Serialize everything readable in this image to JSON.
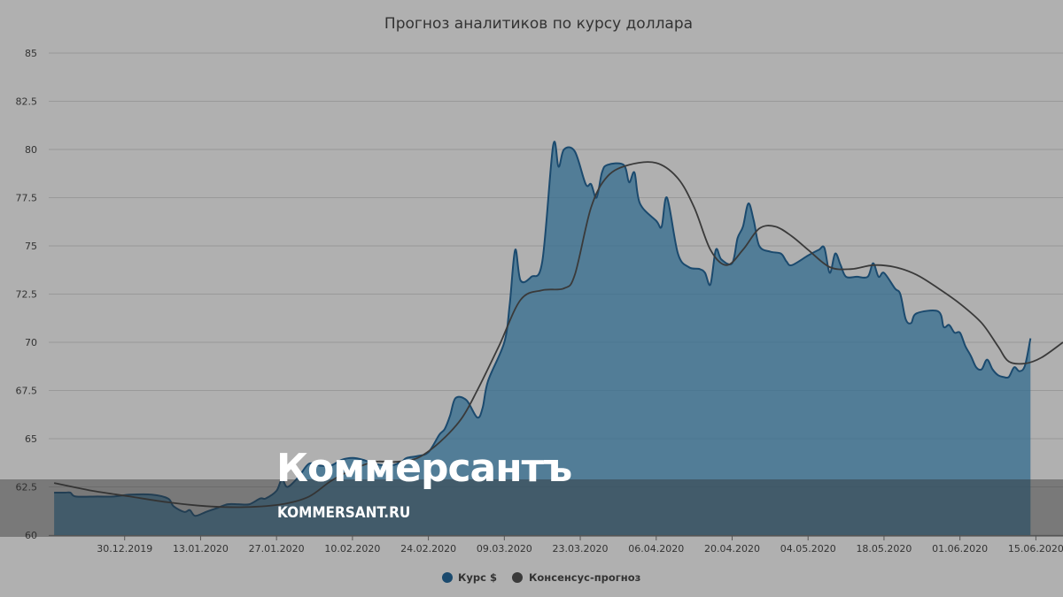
{
  "chart_data": {
    "type": "area",
    "title": "Прогноз аналитиков по курсу доллара",
    "xlabel": "",
    "ylabel": "",
    "ylim": [
      60,
      85
    ],
    "yticks": [
      "60",
      "62.5",
      "65",
      "67.5",
      "70",
      "72.5",
      "75",
      "77.5",
      "80",
      "82.5",
      "85"
    ],
    "xrange": [
      "2019-12-16",
      "2020-06-20"
    ],
    "xticks": [
      "30.12.2019",
      "13.01.2020",
      "27.01.2020",
      "10.02.2020",
      "24.02.2020",
      "09.03.2020",
      "23.03.2020",
      "06.04.2020",
      "20.04.2020",
      "04.05.2020",
      "18.05.2020",
      "01.06.2020",
      "15.06.2020"
    ],
    "grid": true,
    "legend_position": "bottom",
    "colors": {
      "rate": "#1b4a6e",
      "rate_fill": "#2e6a8e",
      "consensus": "#3a3a3a"
    },
    "series": [
      {
        "name": "Курс $",
        "style": "area",
        "points": [
          [
            "2019-12-17",
            62.2
          ],
          [
            "2019-12-19",
            62.2
          ],
          [
            "2019-12-20",
            62.2
          ],
          [
            "2019-12-21",
            62.0
          ],
          [
            "2019-12-25",
            62.0
          ],
          [
            "2019-12-28",
            62.0
          ],
          [
            "2019-12-31",
            62.1
          ],
          [
            "2020-01-04",
            62.1
          ],
          [
            "2020-01-07",
            61.9
          ],
          [
            "2020-01-08",
            61.5
          ],
          [
            "2020-01-10",
            61.2
          ],
          [
            "2020-01-11",
            61.3
          ],
          [
            "2020-01-12",
            61.0
          ],
          [
            "2020-01-14",
            61.2
          ],
          [
            "2020-01-16",
            61.4
          ],
          [
            "2020-01-18",
            61.6
          ],
          [
            "2020-01-20",
            61.6
          ],
          [
            "2020-01-22",
            61.6
          ],
          [
            "2020-01-24",
            61.9
          ],
          [
            "2020-01-25",
            61.9
          ],
          [
            "2020-01-27",
            62.3
          ],
          [
            "2020-01-28",
            62.9
          ],
          [
            "2020-01-29",
            62.5
          ],
          [
            "2020-01-31",
            63.0
          ],
          [
            "2020-02-02",
            63.7
          ],
          [
            "2020-02-04",
            63.6
          ],
          [
            "2020-02-06",
            63.6
          ],
          [
            "2020-02-08",
            63.9
          ],
          [
            "2020-02-10",
            64.0
          ],
          [
            "2020-02-12",
            63.9
          ],
          [
            "2020-02-14",
            63.7
          ],
          [
            "2020-02-17",
            63.6
          ],
          [
            "2020-02-19",
            63.8
          ],
          [
            "2020-02-20",
            64.0
          ],
          [
            "2020-02-22",
            64.1
          ],
          [
            "2020-02-24",
            64.3
          ],
          [
            "2020-02-26",
            65.2
          ],
          [
            "2020-02-27",
            65.5
          ],
          [
            "2020-02-28",
            66.2
          ],
          [
            "2020-02-29",
            67.1
          ],
          [
            "2020-03-02",
            67.0
          ],
          [
            "2020-03-04",
            66.1
          ],
          [
            "2020-03-05",
            66.6
          ],
          [
            "2020-03-06",
            68.0
          ],
          [
            "2020-03-09",
            70.0
          ],
          [
            "2020-03-10",
            72.0
          ],
          [
            "2020-03-11",
            74.8
          ],
          [
            "2020-03-12",
            73.2
          ],
          [
            "2020-03-14",
            73.4
          ],
          [
            "2020-03-16",
            74.2
          ],
          [
            "2020-03-18",
            80.2
          ],
          [
            "2020-03-19",
            79.1
          ],
          [
            "2020-03-20",
            80.0
          ],
          [
            "2020-03-22",
            79.9
          ],
          [
            "2020-03-24",
            78.2
          ],
          [
            "2020-03-25",
            78.2
          ],
          [
            "2020-03-26",
            77.5
          ],
          [
            "2020-03-27",
            78.8
          ],
          [
            "2020-03-28",
            79.2
          ],
          [
            "2020-03-31",
            79.2
          ],
          [
            "2020-04-01",
            78.3
          ],
          [
            "2020-04-02",
            78.8
          ],
          [
            "2020-04-03",
            77.2
          ],
          [
            "2020-04-06",
            76.3
          ],
          [
            "2020-04-07",
            76.0
          ],
          [
            "2020-04-08",
            77.5
          ],
          [
            "2020-04-10",
            74.6
          ],
          [
            "2020-04-12",
            73.9
          ],
          [
            "2020-04-14",
            73.8
          ],
          [
            "2020-04-15",
            73.6
          ],
          [
            "2020-04-16",
            73.0
          ],
          [
            "2020-04-17",
            74.8
          ],
          [
            "2020-04-18",
            74.3
          ],
          [
            "2020-04-20",
            74.1
          ],
          [
            "2020-04-21",
            75.4
          ],
          [
            "2020-04-22",
            76.0
          ],
          [
            "2020-04-23",
            77.2
          ],
          [
            "2020-04-24",
            76.3
          ],
          [
            "2020-04-25",
            75.0
          ],
          [
            "2020-04-27",
            74.7
          ],
          [
            "2020-04-29",
            74.6
          ],
          [
            "2020-04-30",
            74.2
          ],
          [
            "2020-05-01",
            74.0
          ],
          [
            "2020-05-04",
            74.5
          ],
          [
            "2020-05-06",
            74.8
          ],
          [
            "2020-05-07",
            74.9
          ],
          [
            "2020-05-08",
            73.6
          ],
          [
            "2020-05-09",
            74.6
          ],
          [
            "2020-05-10",
            74.0
          ],
          [
            "2020-05-11",
            73.4
          ],
          [
            "2020-05-13",
            73.4
          ],
          [
            "2020-05-15",
            73.4
          ],
          [
            "2020-05-16",
            74.1
          ],
          [
            "2020-05-17",
            73.4
          ],
          [
            "2020-05-18",
            73.6
          ],
          [
            "2020-05-20",
            72.8
          ],
          [
            "2020-05-21",
            72.5
          ],
          [
            "2020-05-22",
            71.2
          ],
          [
            "2020-05-23",
            71.0
          ],
          [
            "2020-05-24",
            71.5
          ],
          [
            "2020-05-28",
            71.6
          ],
          [
            "2020-05-29",
            70.8
          ],
          [
            "2020-05-30",
            70.9
          ],
          [
            "2020-05-31",
            70.5
          ],
          [
            "2020-06-01",
            70.5
          ],
          [
            "2020-06-02",
            69.8
          ],
          [
            "2020-06-03",
            69.3
          ],
          [
            "2020-06-04",
            68.7
          ],
          [
            "2020-06-05",
            68.6
          ],
          [
            "2020-06-06",
            69.1
          ],
          [
            "2020-06-07",
            68.6
          ],
          [
            "2020-06-08",
            68.3
          ],
          [
            "2020-06-09",
            68.2
          ],
          [
            "2020-06-10",
            68.2
          ],
          [
            "2020-06-11",
            68.7
          ],
          [
            "2020-06-12",
            68.5
          ],
          [
            "2020-06-13",
            68.8
          ],
          [
            "2020-06-14",
            70.2
          ]
        ]
      },
      {
        "name": "Консенсус-прогноз",
        "style": "line",
        "points": [
          [
            "2019-12-17",
            62.7
          ],
          [
            "2019-12-24",
            62.3
          ],
          [
            "2019-12-31",
            62.0
          ],
          [
            "2020-01-07",
            61.7
          ],
          [
            "2020-01-14",
            61.5
          ],
          [
            "2020-01-21",
            61.45
          ],
          [
            "2020-01-28",
            61.6
          ],
          [
            "2020-02-02",
            62.0
          ],
          [
            "2020-02-06",
            62.8
          ],
          [
            "2020-02-10",
            63.4
          ],
          [
            "2020-02-14",
            63.8
          ],
          [
            "2020-02-18",
            63.8
          ],
          [
            "2020-02-22",
            64.0
          ],
          [
            "2020-02-26",
            64.8
          ],
          [
            "2020-03-01",
            66.0
          ],
          [
            "2020-03-04",
            67.5
          ],
          [
            "2020-03-08",
            69.8
          ],
          [
            "2020-03-12",
            72.2
          ],
          [
            "2020-03-16",
            72.7
          ],
          [
            "2020-03-20",
            72.8
          ],
          [
            "2020-03-22",
            73.5
          ],
          [
            "2020-03-25",
            77.0
          ],
          [
            "2020-03-28",
            78.6
          ],
          [
            "2020-04-01",
            79.2
          ],
          [
            "2020-04-06",
            79.3
          ],
          [
            "2020-04-10",
            78.5
          ],
          [
            "2020-04-13",
            77.0
          ],
          [
            "2020-04-16",
            74.8
          ],
          [
            "2020-04-19",
            74.0
          ],
          [
            "2020-04-22",
            74.8
          ],
          [
            "2020-04-25",
            75.9
          ],
          [
            "2020-04-28",
            76.0
          ],
          [
            "2020-05-01",
            75.5
          ],
          [
            "2020-05-04",
            74.8
          ],
          [
            "2020-05-08",
            73.9
          ],
          [
            "2020-05-12",
            73.8
          ],
          [
            "2020-05-16",
            74.0
          ],
          [
            "2020-05-20",
            73.9
          ],
          [
            "2020-05-24",
            73.5
          ],
          [
            "2020-05-28",
            72.8
          ],
          [
            "2020-06-01",
            72.0
          ],
          [
            "2020-06-05",
            71.0
          ],
          [
            "2020-06-08",
            69.8
          ],
          [
            "2020-06-10",
            69.0
          ],
          [
            "2020-06-13",
            68.9
          ],
          [
            "2020-06-16",
            69.2
          ],
          [
            "2020-06-20",
            70.0
          ]
        ]
      }
    ]
  },
  "watermark": {
    "brand": "Коммерсантъ",
    "site": "KOMMERSANT.RU"
  }
}
